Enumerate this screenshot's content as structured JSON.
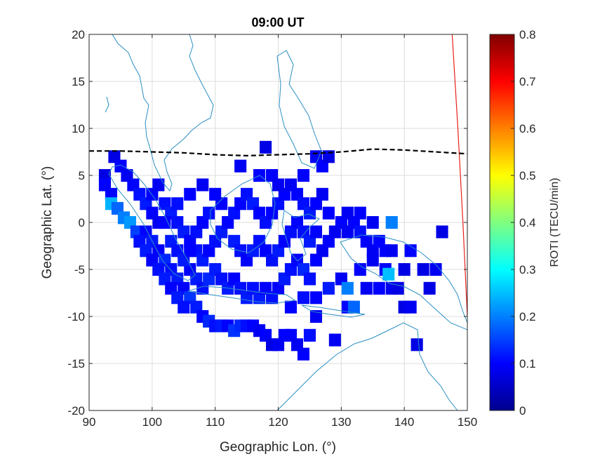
{
  "chart_data": {
    "type": "heatmap",
    "title": "09:00 UT",
    "xlabel": "Geographic Lon. (°)",
    "ylabel": "Geographic Lat. (°)",
    "xlim": [
      90,
      150
    ],
    "ylim": [
      -20,
      20
    ],
    "xticks": [
      "90",
      "100",
      "110",
      "120",
      "130",
      "140",
      "150"
    ],
    "yticks": [
      "20",
      "15",
      "10",
      "5",
      "0",
      "-5",
      "-10",
      "-15",
      "-20"
    ],
    "grid": true,
    "colorbar": {
      "label": "ROTI (TECU/min)",
      "clim": [
        0,
        0.8
      ],
      "ticks": [
        "0",
        "0.1",
        "0.2",
        "0.3",
        "0.4",
        "0.5",
        "0.6",
        "0.7",
        "0.8"
      ],
      "colormap": "jet"
    },
    "magnetic_equator": [
      [
        90,
        7.6
      ],
      [
        95,
        7.6
      ],
      [
        100,
        7.5
      ],
      [
        105,
        7.4
      ],
      [
        110,
        7.2
      ],
      [
        115,
        7.1
      ],
      [
        120,
        7.2
      ],
      [
        125,
        7.3
      ],
      [
        130,
        7.5
      ],
      [
        135,
        7.8
      ],
      [
        140,
        7.7
      ],
      [
        145,
        7.5
      ],
      [
        150,
        7.3
      ]
    ],
    "terminator": [
      [
        147.6,
        20
      ],
      [
        148.5,
        10
      ],
      [
        149.3,
        0
      ],
      [
        150,
        -10
      ],
      [
        150.5,
        -20
      ]
    ],
    "roti_cells": [
      [
        92.5,
        5,
        0.08
      ],
      [
        92.5,
        4,
        0.1
      ],
      [
        93.5,
        3,
        0.1
      ],
      [
        93.5,
        2,
        0.24
      ],
      [
        94.5,
        1.5,
        0.18
      ],
      [
        95.5,
        0.5,
        0.2
      ],
      [
        96.5,
        0,
        0.22
      ],
      [
        97.5,
        -1,
        0.15
      ],
      [
        94,
        7,
        0.08
      ],
      [
        95,
        6,
        0.1
      ],
      [
        96,
        5,
        0.09
      ],
      [
        97,
        4,
        0.1
      ],
      [
        98,
        3,
        0.11
      ],
      [
        99,
        2,
        0.12
      ],
      [
        100,
        1,
        0.1
      ],
      [
        101,
        0,
        0.09
      ],
      [
        99,
        -1,
        0.1
      ],
      [
        100,
        -2,
        0.12
      ],
      [
        101,
        -3,
        0.1
      ],
      [
        102,
        -4,
        0.13
      ],
      [
        103,
        -5,
        0.11
      ],
      [
        104,
        -6,
        0.12
      ],
      [
        105,
        -7,
        0.1
      ],
      [
        106,
        -8,
        0.14
      ],
      [
        107,
        -9,
        0.12
      ],
      [
        108,
        -10,
        0.1
      ],
      [
        109,
        -10.5,
        0.13
      ],
      [
        110,
        -11,
        0.11
      ],
      [
        111,
        -11,
        0.12
      ],
      [
        112,
        -11,
        0.1
      ],
      [
        113,
        -11.5,
        0.14
      ],
      [
        114,
        -11,
        0.13
      ],
      [
        115,
        -11,
        0.11
      ],
      [
        116,
        -11,
        0.1
      ],
      [
        117,
        -11.5,
        0.09
      ],
      [
        118,
        -12,
        0.1
      ],
      [
        119,
        -13,
        0.08
      ],
      [
        120,
        -13,
        0.09
      ],
      [
        121,
        -12,
        0.1
      ],
      [
        122,
        -12,
        0.1
      ],
      [
        123,
        -13,
        0.09
      ],
      [
        124,
        -14,
        0.1
      ],
      [
        125,
        -12,
        0.11
      ],
      [
        126,
        -10,
        0.09
      ],
      [
        122,
        -9,
        0.1
      ],
      [
        124,
        -8,
        0.11
      ],
      [
        126,
        -8,
        0.1
      ],
      [
        128,
        -7,
        0.12
      ],
      [
        130,
        -6,
        0.09
      ],
      [
        131,
        -7,
        0.2
      ],
      [
        133,
        -5,
        0.1
      ],
      [
        135,
        -4,
        0.09
      ],
      [
        137,
        -5,
        0.1
      ],
      [
        137.5,
        -5.5,
        0.25
      ],
      [
        138,
        -7,
        0.09
      ],
      [
        140,
        -5,
        0.08
      ],
      [
        98,
        -2,
        0.11
      ],
      [
        99,
        -3,
        0.12
      ],
      [
        100,
        -4,
        0.1
      ],
      [
        101,
        -5,
        0.11
      ],
      [
        102,
        -6,
        0.12
      ],
      [
        103,
        -7,
        0.1
      ],
      [
        104,
        -8,
        0.12
      ],
      [
        105,
        -9,
        0.11
      ],
      [
        106,
        -5,
        0.1
      ],
      [
        107,
        -6,
        0.12
      ],
      [
        108,
        -7,
        0.11
      ],
      [
        109,
        -6,
        0.13
      ],
      [
        110,
        -5,
        0.12
      ],
      [
        111,
        -6,
        0.11
      ],
      [
        112,
        -7,
        0.12
      ],
      [
        113,
        -6,
        0.1
      ],
      [
        114,
        -7,
        0.11
      ],
      [
        115,
        -8,
        0.12
      ],
      [
        116,
        -7,
        0.11
      ],
      [
        117,
        -8,
        0.12
      ],
      [
        118,
        -7,
        0.1
      ],
      [
        119,
        -8,
        0.11
      ],
      [
        120,
        -7,
        0.1
      ],
      [
        121,
        -6,
        0.12
      ],
      [
        122,
        -5,
        0.11
      ],
      [
        123,
        -4,
        0.1
      ],
      [
        124,
        -5,
        0.13
      ],
      [
        125,
        -6,
        0.11
      ],
      [
        126,
        -4,
        0.1
      ],
      [
        127,
        -3,
        0.09
      ],
      [
        128,
        -2,
        0.1
      ],
      [
        129,
        -1,
        0.09
      ],
      [
        130,
        0,
        0.1
      ],
      [
        131,
        -1,
        0.09
      ],
      [
        132,
        0,
        0.1
      ],
      [
        133,
        -1,
        0.11
      ],
      [
        134,
        -2,
        0.1
      ],
      [
        135,
        -3,
        0.09
      ],
      [
        136,
        -2,
        0.1
      ],
      [
        138,
        0,
        0.2
      ],
      [
        100,
        3,
        0.1
      ],
      [
        101,
        4,
        0.09
      ],
      [
        102,
        2,
        0.11
      ],
      [
        103,
        1,
        0.12
      ],
      [
        104,
        0,
        0.11
      ],
      [
        105,
        -1,
        0.12
      ],
      [
        106,
        -2,
        0.1
      ],
      [
        107,
        -3,
        0.11
      ],
      [
        108,
        -4,
        0.12
      ],
      [
        109,
        -3,
        0.1
      ],
      [
        110,
        -2,
        0.11
      ],
      [
        111,
        -1,
        0.12
      ],
      [
        112,
        0,
        0.1
      ],
      [
        113,
        1,
        0.11
      ],
      [
        114,
        2,
        0.1
      ],
      [
        115,
        3,
        0.11
      ],
      [
        116,
        2,
        0.12
      ],
      [
        117,
        1,
        0.1
      ],
      [
        118,
        0,
        0.11
      ],
      [
        119,
        1,
        0.1
      ],
      [
        120,
        2,
        0.11
      ],
      [
        121,
        3,
        0.1
      ],
      [
        122,
        4,
        0.09
      ],
      [
        123,
        3,
        0.1
      ],
      [
        124,
        2,
        0.11
      ],
      [
        125,
        1,
        0.12
      ],
      [
        126,
        2,
        0.1
      ],
      [
        127,
        3,
        0.09
      ],
      [
        128,
        1,
        0.1
      ],
      [
        110,
        3,
        0.1
      ],
      [
        108,
        4,
        0.09
      ],
      [
        106,
        3,
        0.1
      ],
      [
        104,
        2,
        0.11
      ],
      [
        102,
        0,
        0.1
      ],
      [
        103,
        -2,
        0.12
      ],
      [
        104,
        -3,
        0.11
      ],
      [
        105,
        -4,
        0.12
      ],
      [
        106,
        -3,
        0.1
      ],
      [
        107,
        -1,
        0.11
      ],
      [
        108,
        0,
        0.1
      ],
      [
        109,
        1,
        0.11
      ],
      [
        111,
        2,
        0.1
      ],
      [
        113,
        -2,
        0.12
      ],
      [
        114,
        -3,
        0.11
      ],
      [
        115,
        -4,
        0.1
      ],
      [
        116,
        -3,
        0.12
      ],
      [
        117,
        -2,
        0.11
      ],
      [
        118,
        -3,
        0.1
      ],
      [
        119,
        -4,
        0.11
      ],
      [
        120,
        -3,
        0.12
      ],
      [
        121,
        -2,
        0.1
      ],
      [
        122,
        -1,
        0.11
      ],
      [
        123,
        0,
        0.1
      ],
      [
        124,
        -1,
        0.11
      ],
      [
        125,
        -2,
        0.12
      ],
      [
        126,
        -1,
        0.1
      ],
      [
        114,
        6,
        0.09
      ],
      [
        117,
        5,
        0.1
      ],
      [
        118,
        8,
        0.08
      ],
      [
        119,
        5,
        0.1
      ],
      [
        120,
        4,
        0.09
      ],
      [
        124,
        5,
        0.1
      ],
      [
        126,
        7,
        0.09
      ],
      [
        127,
        6,
        0.1
      ],
      [
        128,
        7,
        0.08
      ],
      [
        131,
        1,
        0.09
      ],
      [
        133,
        1,
        0.1
      ],
      [
        135,
        0,
        0.09
      ],
      [
        137,
        -3,
        0.1
      ],
      [
        138,
        -3,
        0.09
      ],
      [
        139,
        -7,
        0.08
      ],
      [
        140,
        -9,
        0.08
      ],
      [
        143,
        -5,
        0.08
      ],
      [
        145,
        -5,
        0.09
      ],
      [
        142,
        -13,
        0.08
      ],
      [
        129,
        -12.5,
        0.09
      ],
      [
        131,
        -9,
        0.1
      ],
      [
        132,
        -9,
        0.18
      ],
      [
        134,
        -7,
        0.09
      ],
      [
        136,
        -7,
        0.1
      ],
      [
        141,
        -9,
        0.09
      ],
      [
        144,
        -7,
        0.08
      ],
      [
        146,
        -1,
        0.08
      ],
      [
        141,
        -3,
        0.1
      ]
    ]
  }
}
